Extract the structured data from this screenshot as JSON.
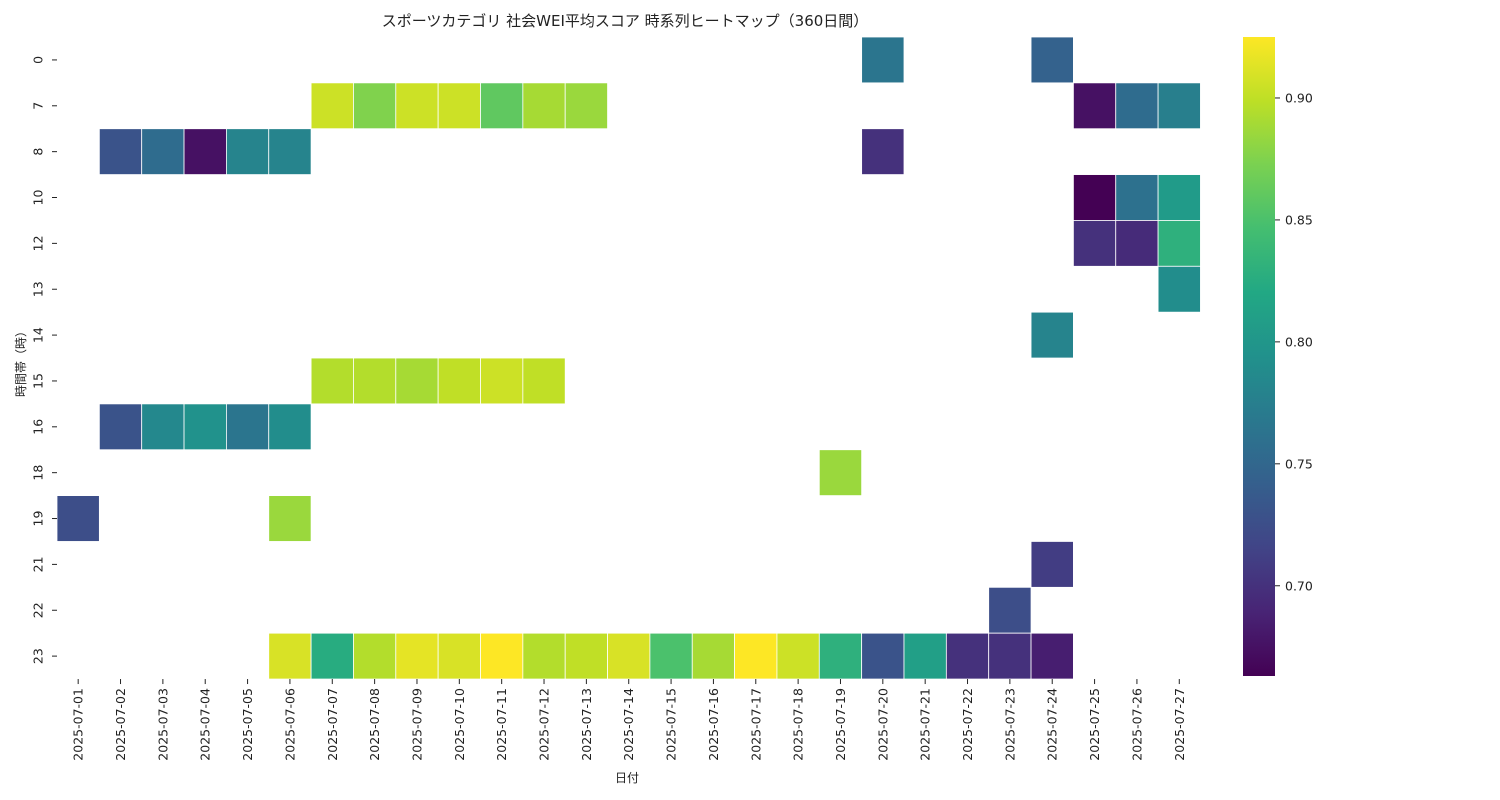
{
  "chart_data": {
    "type": "heatmap",
    "title": "スポーツカテゴリ 社会WEI平均スコア 時系列ヒートマップ（360日間）",
    "xlabel": "日付",
    "ylabel": "時間帯（時）",
    "x": [
      "2025-07-01",
      "2025-07-02",
      "2025-07-03",
      "2025-07-04",
      "2025-07-05",
      "2025-07-06",
      "2025-07-07",
      "2025-07-08",
      "2025-07-09",
      "2025-07-10",
      "2025-07-11",
      "2025-07-12",
      "2025-07-13",
      "2025-07-14",
      "2025-07-15",
      "2025-07-16",
      "2025-07-17",
      "2025-07-18",
      "2025-07-19",
      "2025-07-20",
      "2025-07-21",
      "2025-07-22",
      "2025-07-23",
      "2025-07-24",
      "2025-07-25",
      "2025-07-26",
      "2025-07-27"
    ],
    "y": [
      "0",
      "7",
      "8",
      "10",
      "12",
      "13",
      "14",
      "15",
      "16",
      "18",
      "19",
      "21",
      "22",
      "23"
    ],
    "cells": [
      {
        "date": "2025-07-20",
        "hour": "0",
        "value": 0.765
      },
      {
        "date": "2025-07-24",
        "hour": "0",
        "value": 0.745
      },
      {
        "date": "2025-07-07",
        "hour": "7",
        "value": 0.905
      },
      {
        "date": "2025-07-08",
        "hour": "7",
        "value": 0.875
      },
      {
        "date": "2025-07-09",
        "hour": "7",
        "value": 0.905
      },
      {
        "date": "2025-07-10",
        "hour": "7",
        "value": 0.905
      },
      {
        "date": "2025-07-11",
        "hour": "7",
        "value": 0.86
      },
      {
        "date": "2025-07-12",
        "hour": "7",
        "value": 0.89
      },
      {
        "date": "2025-07-13",
        "hour": "7",
        "value": 0.885
      },
      {
        "date": "2025-07-25",
        "hour": "7",
        "value": 0.675
      },
      {
        "date": "2025-07-26",
        "hour": "7",
        "value": 0.755
      },
      {
        "date": "2025-07-27",
        "hour": "7",
        "value": 0.775
      },
      {
        "date": "2025-07-02",
        "hour": "8",
        "value": 0.73
      },
      {
        "date": "2025-07-03",
        "hour": "8",
        "value": 0.755
      },
      {
        "date": "2025-07-04",
        "hour": "8",
        "value": 0.675
      },
      {
        "date": "2025-07-05",
        "hour": "8",
        "value": 0.78
      },
      {
        "date": "2025-07-06",
        "hour": "8",
        "value": 0.78
      },
      {
        "date": "2025-07-20",
        "hour": "8",
        "value": 0.7
      },
      {
        "date": "2025-07-25",
        "hour": "10",
        "value": 0.663
      },
      {
        "date": "2025-07-26",
        "hour": "10",
        "value": 0.76
      },
      {
        "date": "2025-07-27",
        "hour": "10",
        "value": 0.805
      },
      {
        "date": "2025-07-25",
        "hour": "12",
        "value": 0.7
      },
      {
        "date": "2025-07-26",
        "hour": "12",
        "value": 0.695
      },
      {
        "date": "2025-07-27",
        "hour": "12",
        "value": 0.83
      },
      {
        "date": "2025-07-27",
        "hour": "13",
        "value": 0.79
      },
      {
        "date": "2025-07-24",
        "hour": "14",
        "value": 0.78
      },
      {
        "date": "2025-07-07",
        "hour": "15",
        "value": 0.895
      },
      {
        "date": "2025-07-08",
        "hour": "15",
        "value": 0.895
      },
      {
        "date": "2025-07-09",
        "hour": "15",
        "value": 0.89
      },
      {
        "date": "2025-07-10",
        "hour": "15",
        "value": 0.9
      },
      {
        "date": "2025-07-11",
        "hour": "15",
        "value": 0.905
      },
      {
        "date": "2025-07-12",
        "hour": "15",
        "value": 0.9
      },
      {
        "date": "2025-07-02",
        "hour": "16",
        "value": 0.73
      },
      {
        "date": "2025-07-03",
        "hour": "16",
        "value": 0.785
      },
      {
        "date": "2025-07-04",
        "hour": "16",
        "value": 0.795
      },
      {
        "date": "2025-07-05",
        "hour": "16",
        "value": 0.765
      },
      {
        "date": "2025-07-06",
        "hour": "16",
        "value": 0.79
      },
      {
        "date": "2025-07-19",
        "hour": "18",
        "value": 0.885
      },
      {
        "date": "2025-07-01",
        "hour": "19",
        "value": 0.725
      },
      {
        "date": "2025-07-06",
        "hour": "19",
        "value": 0.885
      },
      {
        "date": "2025-07-24",
        "hour": "21",
        "value": 0.71
      },
      {
        "date": "2025-07-23",
        "hour": "22",
        "value": 0.725
      },
      {
        "date": "2025-07-06",
        "hour": "23",
        "value": 0.91
      },
      {
        "date": "2025-07-07",
        "hour": "23",
        "value": 0.825
      },
      {
        "date": "2025-07-08",
        "hour": "23",
        "value": 0.895
      },
      {
        "date": "2025-07-09",
        "hour": "23",
        "value": 0.915
      },
      {
        "date": "2025-07-10",
        "hour": "23",
        "value": 0.91
      },
      {
        "date": "2025-07-11",
        "hour": "23",
        "value": 0.925
      },
      {
        "date": "2025-07-12",
        "hour": "23",
        "value": 0.895
      },
      {
        "date": "2025-07-13",
        "hour": "23",
        "value": 0.9
      },
      {
        "date": "2025-07-14",
        "hour": "23",
        "value": 0.91
      },
      {
        "date": "2025-07-15",
        "hour": "23",
        "value": 0.85
      },
      {
        "date": "2025-07-16",
        "hour": "23",
        "value": 0.89
      },
      {
        "date": "2025-07-17",
        "hour": "23",
        "value": 0.925
      },
      {
        "date": "2025-07-18",
        "hour": "23",
        "value": 0.905
      },
      {
        "date": "2025-07-19",
        "hour": "23",
        "value": 0.83
      },
      {
        "date": "2025-07-20",
        "hour": "23",
        "value": 0.73
      },
      {
        "date": "2025-07-21",
        "hour": "23",
        "value": 0.81
      },
      {
        "date": "2025-07-22",
        "hour": "23",
        "value": 0.7
      },
      {
        "date": "2025-07-23",
        "hour": "23",
        "value": 0.7
      },
      {
        "date": "2025-07-24",
        "hour": "23",
        "value": 0.685
      }
    ],
    "colormap": "viridis",
    "vmin": 0.663,
    "vmax": 0.925,
    "colorbar": {
      "ticks": [
        0.7,
        0.75,
        0.8,
        0.85,
        0.9
      ],
      "tick_labels": [
        "0.70",
        "0.75",
        "0.80",
        "0.85",
        "0.90"
      ]
    },
    "grid": false
  }
}
